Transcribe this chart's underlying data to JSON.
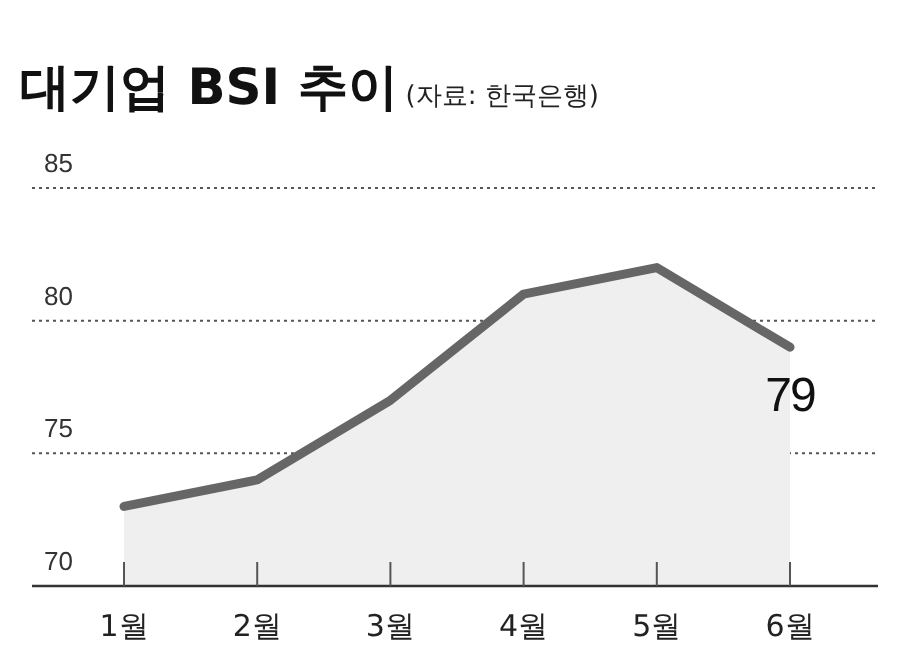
{
  "chart_data": {
    "type": "area",
    "title": "대기업 BSI 추이",
    "subtitle": "(자료: 한국은행)",
    "categories": [
      "1월",
      "2월",
      "3월",
      "4월",
      "5월",
      "6월"
    ],
    "series": [
      {
        "color": "#666666",
        "values": [
          73,
          74,
          77,
          81,
          82,
          79
        ]
      }
    ],
    "ylim": [
      70,
      85
    ],
    "yticks": [
      70,
      75,
      80,
      85
    ],
    "grid": "y",
    "annotations": [
      {
        "text": "79",
        "x": "6월",
        "y": 79
      }
    ]
  }
}
